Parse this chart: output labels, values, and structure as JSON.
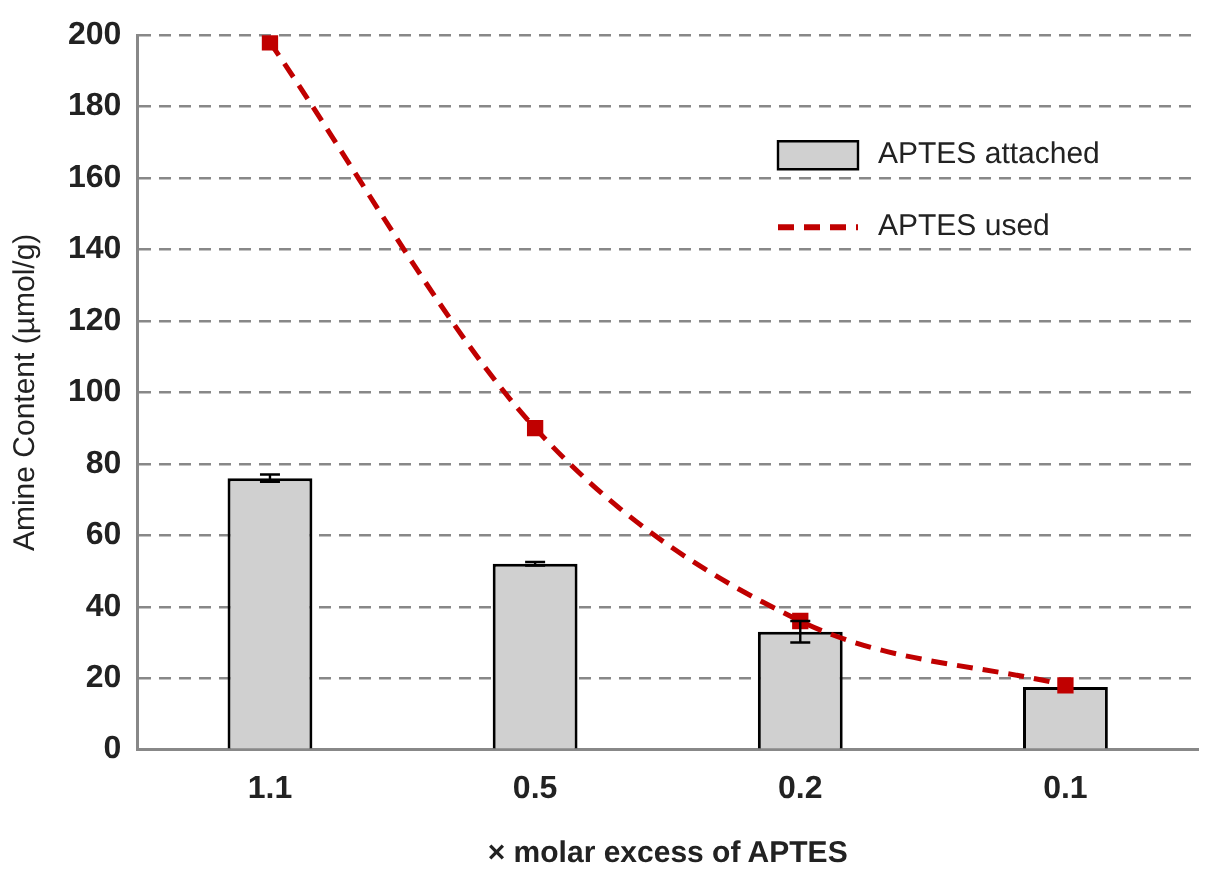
{
  "chart_data": {
    "type": "bar",
    "xlabel": "× molar excess of APTES",
    "ylabel": "Amine Content (µmol/g)",
    "categories": [
      "1.1",
      "0.5",
      "0.2",
      "0.1"
    ],
    "series": [
      {
        "name": "APTES attached",
        "color": "#d0d0d0",
        "values": [
          76,
          52,
          33,
          17.5
        ],
        "errors": [
          1,
          0.5,
          3,
          null
        ]
      },
      {
        "name": "APTES used",
        "type": "line",
        "color": "#c00000",
        "values": [
          198,
          90,
          36,
          18
        ],
        "line_style": "dashed",
        "marker": "square"
      }
    ],
    "ylim": [
      0,
      200
    ],
    "yticks": [
      0,
      20,
      40,
      60,
      80,
      100,
      120,
      140,
      160,
      180,
      200
    ],
    "grid": "y",
    "legend": "top right"
  }
}
